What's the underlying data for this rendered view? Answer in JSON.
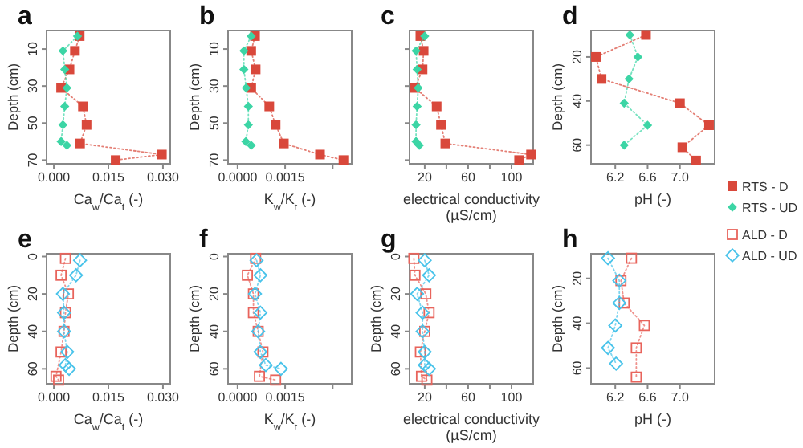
{
  "chart_data": [
    {
      "type": "line",
      "title": "a",
      "xlabel": "Ca$_{w}$/Ca$_{t}$ (-)",
      "ylabel": "Depth (cm)",
      "orientation": "horizontal",
      "line_style": "dotted",
      "legend": false,
      "xlim": [
        -0.002,
        0.032
      ],
      "xticks": [
        {
          "value": 0,
          "label": "0.000"
        },
        {
          "value": 0.015,
          "label": "0.015"
        },
        {
          "value": 0.03,
          "label": "0.030"
        }
      ],
      "ylim": [
        72,
        0
      ],
      "yticks": [
        10,
        30,
        50,
        70
      ],
      "series": [
        {
          "color": "#d9483b",
          "marker": "square",
          "x": [
            3,
            11,
            21,
            31,
            41,
            51,
            61,
            67,
            70
          ],
          "values": [
            0.0071,
            0.0058,
            0.0043,
            0.002,
            0.008,
            0.009,
            0.0072,
            0.0297,
            0.017
          ]
        },
        {
          "color": "#3cd5a5",
          "marker": "diamond",
          "x": [
            3,
            11,
            21,
            31,
            41,
            51,
            60,
            62
          ],
          "values": [
            0.0065,
            0.0025,
            0.003,
            0.0036,
            0.003,
            0.0025,
            0.002,
            0.0036
          ]
        }
      ]
    },
    {
      "type": "line",
      "title": "b",
      "xlabel": "K$_{w}$/K$_{t}$ (-)",
      "ylabel": "Depth (cm)",
      "orientation": "horizontal",
      "line_style": "dotted",
      "legend": false,
      "xlim": [
        -0.0003,
        0.0036
      ],
      "xticks": [
        {
          "value": 0,
          "label": "0.0000"
        },
        {
          "value": 0.0015,
          "label": "0.0015"
        },
        {
          "value": 0.003,
          "label": null
        }
      ],
      "ylim": [
        72,
        0
      ],
      "yticks": [
        10,
        30,
        50,
        70
      ],
      "series": [
        {
          "color": "#d9483b",
          "marker": "square",
          "x": [
            3,
            11,
            21,
            31,
            41,
            51,
            61,
            67,
            70
          ],
          "values": [
            0.00055,
            0.00043,
            0.00057,
            0.00043,
            0.001,
            0.0012,
            0.00146,
            0.0026,
            0.00334
          ]
        },
        {
          "color": "#3cd5a5",
          "marker": "diamond",
          "x": [
            3,
            11,
            21,
            31,
            41,
            51,
            60,
            62
          ],
          "values": [
            0.00043,
            0.0002,
            0.0002,
            0.00027,
            0.00034,
            0.00034,
            0.00026,
            0.00043
          ]
        }
      ]
    },
    {
      "type": "line",
      "title": "c",
      "xlabel": "electrical conductivity (µS/cm)",
      "orientation": "horizontal",
      "line_style": "dotted",
      "legend": false,
      "xlim": [
        6,
        120
      ],
      "xticks": [
        20,
        {
          "value": 40,
          "label": null
        },
        60,
        {
          "value": 80,
          "label": null
        },
        100
      ],
      "ylim": [
        72,
        0
      ],
      "yticks": [
        10,
        30,
        50,
        70
      ],
      "tick_labels": "x",
      "series": [
        {
          "color": "#d9483b",
          "marker": "square",
          "x": [
            3,
            11,
            21,
            31,
            41,
            51,
            61,
            67,
            70
          ],
          "values": [
            16,
            19,
            18,
            11,
            31,
            35,
            39,
            118,
            107
          ]
        },
        {
          "color": "#3cd5a5",
          "marker": "diamond",
          "x": [
            3,
            11,
            21,
            31,
            41,
            51,
            60,
            62
          ],
          "values": [
            20,
            12,
            13,
            14,
            13,
            12,
            12,
            15
          ]
        }
      ]
    },
    {
      "type": "line",
      "title": "d",
      "xlabel": "pH (-)",
      "ylabel": "Depth (cm)",
      "orientation": "horizontal",
      "line_style": "dotted",
      "legend": "bottom right",
      "xlim": [
        5.9,
        7.43
      ],
      "xticks": [
        6.2,
        6.6,
        {
          "value": 7,
          "label": "7.0"
        }
      ],
      "ylim": [
        68.5,
        8
      ],
      "yticks": [
        20,
        40,
        60
      ],
      "series": [
        {
          "name": "RTS - D",
          "color": "#d9483b",
          "marker": "square",
          "x": [
            10,
            20,
            30,
            41,
            51,
            61,
            67
          ],
          "values": [
            6.58,
            5.96,
            6.03,
            7.0,
            7.36,
            7.03,
            7.2
          ]
        },
        {
          "name": "RTS - UD",
          "color": "#3cd5a5",
          "marker": "diamond",
          "x": [
            10,
            20,
            30,
            41,
            51,
            60
          ],
          "values": [
            6.38,
            6.48,
            6.37,
            6.31,
            6.6,
            6.31
          ]
        }
      ]
    },
    {
      "type": "line",
      "title": "e",
      "xlabel": "Ca$_{w}$/Ca$_{t}$ (-)",
      "ylabel": "Depth (cm)",
      "orientation": "horizontal",
      "line_style": "dotted",
      "legend": false,
      "xlim": [
        -0.002,
        0.032
      ],
      "xticks": [
        {
          "value": 0,
          "label": "0.000"
        },
        {
          "value": 0.015,
          "label": "0.015"
        },
        {
          "value": 0.03,
          "label": "0.030"
        }
      ],
      "ylim": [
        68,
        -1.5
      ],
      "yticks": [
        0,
        20,
        40,
        60
      ],
      "series": [
        {
          "color": "#e8645c",
          "marker": "square",
          "x": [
            1,
            10,
            20,
            30,
            40,
            51,
            64,
            66
          ],
          "values": [
            0.0032,
            0.002,
            0.004,
            0.0032,
            0.0028,
            0.002,
            0.0006,
            0.0013
          ]
        },
        {
          "color": "#49c3ea",
          "marker": "diamond",
          "x": [
            2,
            10,
            20,
            30,
            40,
            51,
            58,
            60
          ],
          "values": [
            0.0072,
            0.0061,
            0.0025,
            0.0028,
            0.0028,
            0.0037,
            0.0032,
            0.0042
          ]
        }
      ]
    },
    {
      "type": "line",
      "title": "f",
      "xlabel": "K$_{w}$/K$_{t}$ (-)",
      "ylabel": "Depth (cm)",
      "orientation": "horizontal",
      "line_style": "dotted",
      "legend": false,
      "xlim": [
        -0.0003,
        0.0036
      ],
      "xticks": [
        {
          "value": 0,
          "label": "0.0000"
        },
        {
          "value": 0.0015,
          "label": "0.0015"
        },
        {
          "value": 0.003,
          "label": null
        }
      ],
      "ylim": [
        68,
        -1.5
      ],
      "yticks": [
        0,
        20,
        40,
        60
      ],
      "series": [
        {
          "color": "#e8645c",
          "marker": "square",
          "x": [
            1,
            10,
            20,
            30,
            40,
            51,
            64,
            66
          ],
          "values": [
            0.00057,
            0.00031,
            0.0005,
            0.0005,
            0.00065,
            0.0008,
            0.00069,
            0.0012
          ]
        },
        {
          "color": "#49c3ea",
          "marker": "diamond",
          "x": [
            2,
            10,
            20,
            30,
            40,
            51,
            58,
            60
          ],
          "values": [
            0.0006,
            0.00072,
            0.00055,
            0.00072,
            0.00065,
            0.00072,
            0.00089,
            0.00137
          ]
        }
      ]
    },
    {
      "type": "line",
      "title": "g",
      "xlabel": "electrical conductivity (µS/cm)",
      "ylabel": "Depth (cm)",
      "orientation": "horizontal",
      "line_style": "dotted",
      "legend": false,
      "xlim": [
        6,
        120
      ],
      "xticks": [
        20,
        {
          "value": 40,
          "label": null
        },
        60,
        {
          "value": 80,
          "label": null
        },
        100
      ],
      "ylim": [
        68,
        -1.5
      ],
      "yticks": [
        0,
        20,
        40,
        60
      ],
      "series": [
        {
          "color": "#e8645c",
          "marker": "square",
          "x": [
            1,
            10,
            20,
            30,
            40,
            51,
            64,
            66
          ],
          "values": [
            10,
            11,
            21,
            24,
            20,
            16,
            17,
            22
          ]
        },
        {
          "color": "#49c3ea",
          "marker": "diamond",
          "x": [
            2,
            10,
            20,
            30,
            40,
            51,
            58,
            60
          ],
          "values": [
            20,
            24,
            13,
            18,
            18,
            20,
            20,
            24
          ]
        }
      ]
    },
    {
      "type": "line",
      "title": "h",
      "xlabel": "pH (-)",
      "ylabel": "Depth (cm)",
      "orientation": "horizontal",
      "line_style": "dotted",
      "legend": "top right",
      "xlim": [
        5.9,
        7.43
      ],
      "xticks": [
        6.2,
        6.6,
        {
          "value": 7,
          "label": "7.0"
        }
      ],
      "ylim": [
        67,
        9
      ],
      "yticks": [
        20,
        40,
        60
      ],
      "series": [
        {
          "name": "ALD - D",
          "color": "#e8645c",
          "marker": "square",
          "x": [
            11,
            21,
            31,
            41,
            51,
            64
          ],
          "values": [
            6.4,
            6.27,
            6.31,
            6.56,
            6.46,
            6.46
          ]
        },
        {
          "name": "ALD - UD",
          "color": "#49c3ea",
          "marker": "diamond",
          "x": [
            11,
            21,
            31,
            41,
            51,
            58
          ],
          "values": [
            6.11,
            6.25,
            6.25,
            6.2,
            6.11,
            6.21
          ]
        }
      ]
    }
  ]
}
